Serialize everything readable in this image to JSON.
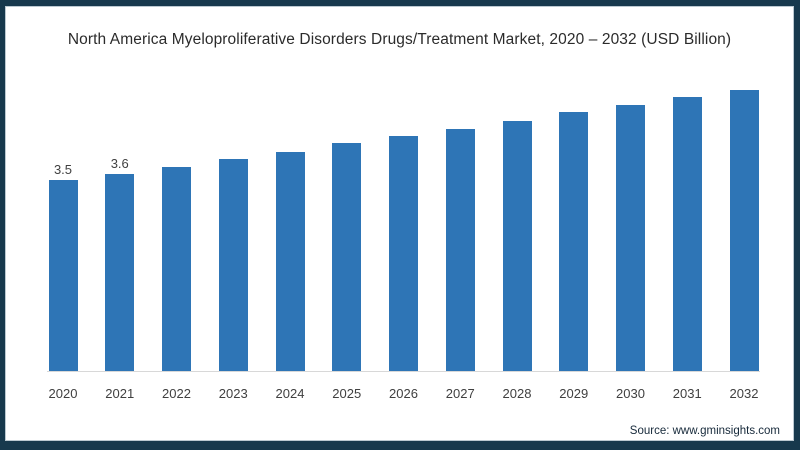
{
  "title": "North America Myeloproliferative Disorders Drugs/Treatment Market, 2020 – 2032 (USD Billion)",
  "source": "Source: www.gminsights.com",
  "frame": {
    "border_color": "#17394d",
    "background": "#ffffff"
  },
  "chart_data": {
    "type": "bar",
    "title": "North America Myeloproliferative Disorders Drugs/Treatment Market, 2020 – 2032 (USD Billion)",
    "unit": "USD Billion",
    "categories": [
      "2020",
      "2021",
      "2022",
      "2023",
      "2024",
      "2025",
      "2026",
      "2027",
      "2028",
      "2029",
      "2030",
      "2031",
      "2032"
    ],
    "values": [
      3.5,
      3.6,
      3.74,
      3.88,
      4.02,
      4.17,
      4.31,
      4.44,
      4.58,
      4.74,
      4.87,
      5.02,
      5.15
    ],
    "displayed_value_labels": [
      "3.5",
      "3.6",
      "",
      "",
      "",
      "",
      "",
      "",
      "",
      "",
      "",
      "",
      ""
    ],
    "bar_color": "#2e75b6",
    "label_color": "#404040",
    "xlabel": "",
    "ylabel": "",
    "ylim": [
      0,
      5.2
    ],
    "grid": false,
    "legend": false,
    "y_axis_visible": false
  }
}
